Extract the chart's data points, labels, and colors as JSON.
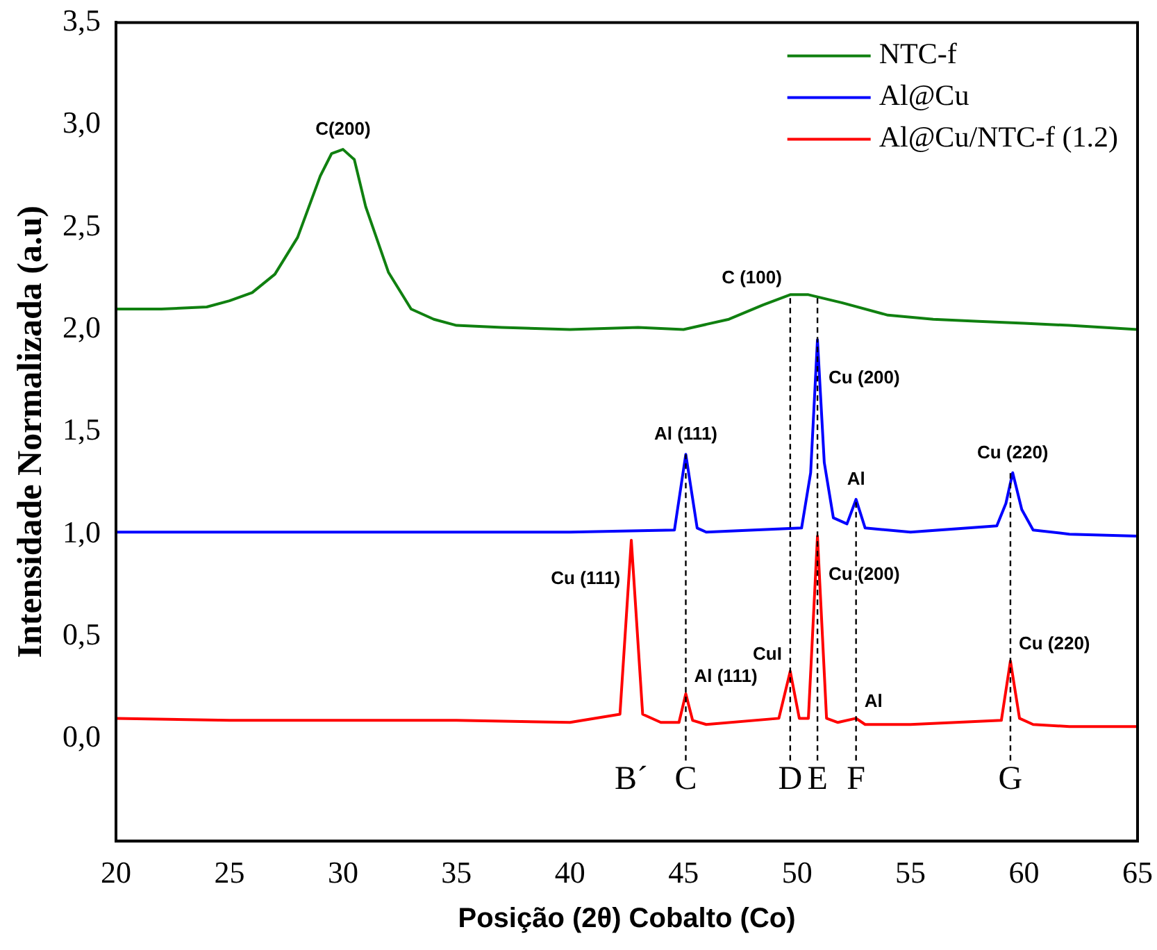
{
  "chart_data": {
    "type": "line",
    "xlabel": "Posição (2θ) Cobalto (Co)",
    "ylabel": "Intensidade Normalizada (a.u)",
    "xlim": [
      20,
      65
    ],
    "xticks": [
      20,
      25,
      30,
      35,
      40,
      45,
      50,
      55,
      60,
      65
    ],
    "ylim": [
      -0.5,
      3.5
    ],
    "yticks": [
      {
        "value": 0,
        "label": "0,0"
      },
      {
        "value": 0.5,
        "label": "0,5"
      },
      {
        "value": 1,
        "label": "1,0"
      },
      {
        "value": 1.5,
        "label": "1,5"
      },
      {
        "value": 2,
        "label": "2,0"
      },
      {
        "value": 2.5,
        "label": "2,5"
      },
      {
        "value": 3,
        "label": "3,0"
      },
      {
        "value": 3.5,
        "label": "3,5"
      }
    ],
    "grid": false,
    "legend": "top right",
    "marker": "none",
    "line_style": "solid",
    "series": [
      {
        "name": "NTC-f",
        "color": "#108010",
        "x": [
          20,
          22,
          24,
          25,
          26,
          27,
          28,
          29,
          29.5,
          30,
          30.5,
          31,
          32,
          33,
          34,
          35,
          37,
          40,
          43,
          45,
          47,
          48.5,
          49.7,
          50.5,
          52,
          54,
          56,
          58,
          60,
          62,
          65
        ],
        "values": [
          2.1,
          2.1,
          2.11,
          2.14,
          2.18,
          2.27,
          2.45,
          2.75,
          2.86,
          2.88,
          2.83,
          2.6,
          2.28,
          2.1,
          2.05,
          2.02,
          2.01,
          2.0,
          2.01,
          2.0,
          2.05,
          2.12,
          2.17,
          2.17,
          2.13,
          2.07,
          2.05,
          2.04,
          2.03,
          2.02,
          2.0
        ]
      },
      {
        "name": "Al@Cu",
        "color": "#0000ff",
        "x": [
          20,
          30,
          40,
          44.6,
          45.1,
          45.6,
          46,
          50.2,
          50.6,
          50.9,
          51.2,
          51.6,
          52.2,
          52.6,
          53,
          55,
          58.8,
          59.2,
          59.5,
          59.9,
          60.4,
          62,
          65
        ],
        "values": [
          1.01,
          1.01,
          1.01,
          1.02,
          1.39,
          1.03,
          1.01,
          1.03,
          1.3,
          1.95,
          1.35,
          1.08,
          1.05,
          1.17,
          1.03,
          1.01,
          1.04,
          1.15,
          1.3,
          1.12,
          1.02,
          1.0,
          0.99
        ]
      },
      {
        "name": "Al@Cu/NTC-f (1.2)",
        "color": "#ff0000",
        "x": [
          20,
          25,
          30,
          35,
          40,
          42.2,
          42.7,
          43.2,
          44,
          44.8,
          45.1,
          45.4,
          46,
          49.2,
          49.7,
          50.1,
          50.5,
          50.9,
          51.3,
          51.8,
          52.6,
          53,
          55,
          59,
          59.4,
          59.8,
          60.4,
          62,
          65
        ],
        "values": [
          0.1,
          0.09,
          0.09,
          0.09,
          0.08,
          0.12,
          0.97,
          0.12,
          0.08,
          0.08,
          0.22,
          0.09,
          0.07,
          0.1,
          0.33,
          0.1,
          0.1,
          0.99,
          0.1,
          0.08,
          0.1,
          0.07,
          0.07,
          0.09,
          0.38,
          0.1,
          0.07,
          0.06,
          0.06
        ]
      }
    ],
    "ref_lines": [
      {
        "axis": "x",
        "value": 45.1,
        "label": "C",
        "line_style": "dashed",
        "color": "#000000"
      },
      {
        "axis": "x",
        "value": 49.7,
        "label": "D",
        "line_style": "dashed",
        "color": "#000000"
      },
      {
        "axis": "x",
        "value": 50.9,
        "label": "E",
        "line_style": "dashed",
        "color": "#000000"
      },
      {
        "axis": "x",
        "value": 52.6,
        "label": "F",
        "line_style": "dashed",
        "color": "#000000"
      },
      {
        "axis": "x",
        "value": 59.4,
        "label": "G",
        "line_style": "dashed",
        "color": "#000000"
      }
    ],
    "annotations": [
      {
        "text": "C(200)",
        "x": 30,
        "y": 2.88
      },
      {
        "text": "C (100)",
        "x": 49.7,
        "y": 2.17
      },
      {
        "text": "Al (111)",
        "x": 45.1,
        "y": 1.39
      },
      {
        "text": "Cu (200)",
        "x": 50.9,
        "y": 1.95
      },
      {
        "text": "Al",
        "x": 52.6,
        "y": 1.17
      },
      {
        "text": "Cu (220)",
        "x": 59.5,
        "y": 1.3
      },
      {
        "text": "Cu (111)",
        "x": 42.7,
        "y": 0.97
      },
      {
        "text": "Al (111)",
        "x": 45.1,
        "y": 0.22
      },
      {
        "text": "CuI",
        "x": 49.7,
        "y": 0.33
      },
      {
        "text": "Cu (200)",
        "x": 50.9,
        "y": 0.99
      },
      {
        "text": "Al",
        "x": 52.6,
        "y": 0.1
      },
      {
        "text": "Cu (220)",
        "x": 59.4,
        "y": 0.38
      },
      "B´"
    ]
  }
}
